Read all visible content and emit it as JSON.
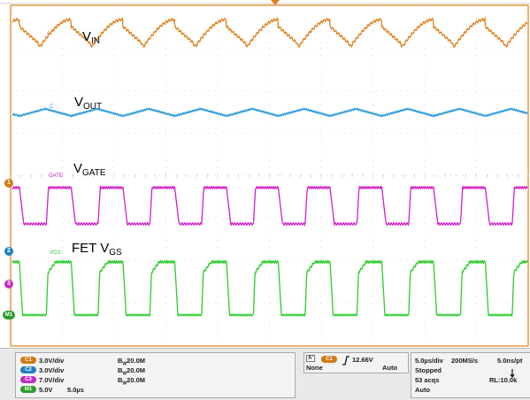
{
  "labels": {
    "vin_main": "V",
    "vin_sub": "IN",
    "vout_main": "V",
    "vout_sub": "OUT",
    "vgate_main": "V",
    "vgate_sub": "GATE",
    "vgs_main": "FET V",
    "vgs_sub": "GS"
  },
  "trace_tags": {
    "vin": "A",
    "vout": "C",
    "vgate": "GATE",
    "vgs": "VGS"
  },
  "markers": {
    "ch1": "1",
    "ch2": "2",
    "ch3": "3",
    "m1": "M1"
  },
  "channels": [
    {
      "pill": "C1",
      "scale": "3.0V/div",
      "bw": "20.0M",
      "color": "#d17a12"
    },
    {
      "pill": "C2",
      "scale": "3.0V/div",
      "bw": "20.0M",
      "color": "#1f7fc4"
    },
    {
      "pill": "C3",
      "scale": "7.0V/div",
      "bw": "20.0M",
      "color": "#c030c0"
    },
    {
      "pill": "M1",
      "scale": "5.0V",
      "time": "5.0µs",
      "color": "#2aa02a"
    }
  ],
  "bw_prefix": "B",
  "bw_sub": "W",
  "trigger": {
    "mode_tag": "A'",
    "source": "C1",
    "level": "12.66V",
    "coupling": "None",
    "sweep": "Auto"
  },
  "timebase": {
    "div": "5.0µs/div",
    "rate": "200MS/s",
    "pt": "5.0ns/pt",
    "state": "Stopped",
    "acqs": "53 acqs",
    "rl": "RL:10.0k",
    "mode": "Auto"
  },
  "colors": {
    "vin": "#e0801a",
    "vout": "#1f95d6",
    "vgate": "#d020c8",
    "vgs": "#2ecc2e",
    "grid": "#bfbfbf",
    "border": "#e0801a"
  }
}
